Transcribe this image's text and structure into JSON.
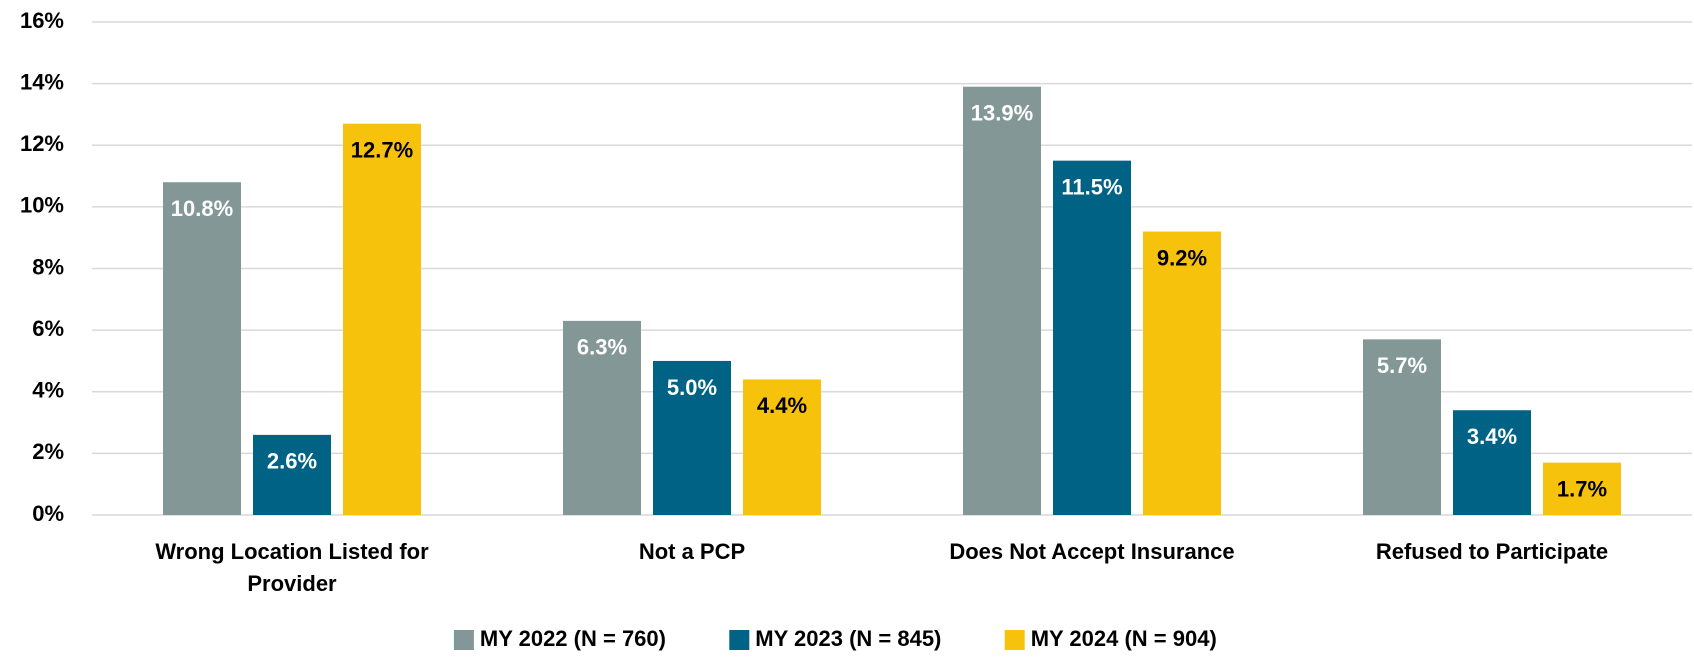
{
  "chart_data": {
    "type": "bar",
    "categories": [
      "Wrong Location Listed for Provider",
      "Not a PCP",
      "Does Not Accept Insurance",
      "Refused to Participate"
    ],
    "series": [
      {
        "name": "MY 2022 (N = 760)",
        "color": "#839797",
        "values": [
          10.8,
          6.3,
          13.9,
          5.7
        ],
        "value_labels": [
          "10.8%",
          "6.3%",
          "13.9%",
          "5.7%"
        ]
      },
      {
        "name": "MY 2023 (N = 845)",
        "color": "#006385",
        "values": [
          2.6,
          5.0,
          11.5,
          3.4
        ],
        "value_labels": [
          "2.6%",
          "5.0%",
          "11.5%",
          "3.4%"
        ]
      },
      {
        "name": "MY 2024 (N = 904)",
        "color": "#F7C20C",
        "values": [
          12.7,
          4.4,
          9.2,
          1.7
        ],
        "value_labels": [
          "12.7%",
          "4.4%",
          "9.2%",
          "1.7%"
        ]
      }
    ],
    "ylim": [
      0,
      16
    ],
    "yticks": [
      {
        "value": 0,
        "label": "0%"
      },
      {
        "value": 2,
        "label": "2%"
      },
      {
        "value": 4,
        "label": "4%"
      },
      {
        "value": 6,
        "label": "6%"
      },
      {
        "value": 8,
        "label": "8%"
      },
      {
        "value": 10,
        "label": "10%"
      },
      {
        "value": 12,
        "label": "12%"
      },
      {
        "value": 14,
        "label": "14%"
      },
      {
        "value": 16,
        "label": "16%"
      }
    ],
    "grid": true,
    "legend": "bottom"
  }
}
